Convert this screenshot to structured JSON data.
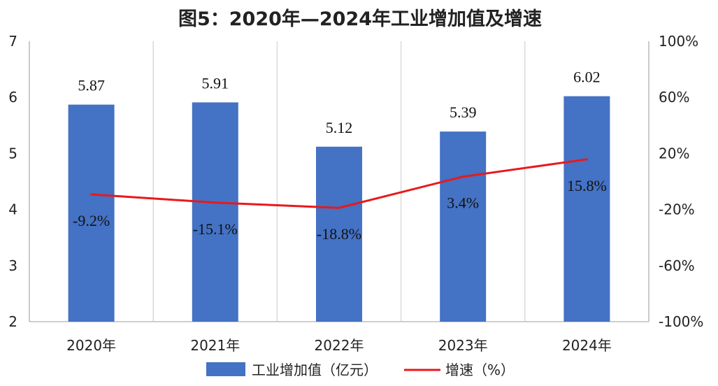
{
  "chart_data": {
    "type": "bar",
    "title": "图5：2020年—2024年工业增加值及增速",
    "categories": [
      "2020年",
      "2021年",
      "2022年",
      "2023年",
      "2024年"
    ],
    "series": [
      {
        "name": "工业增加值（亿元）",
        "kind": "bar",
        "axis": "left",
        "color": "#4472C4",
        "values": [
          5.87,
          5.91,
          5.12,
          5.39,
          6.02
        ],
        "labels": [
          "5.87",
          "5.91",
          "5.12",
          "5.39",
          "6.02"
        ]
      },
      {
        "name": "增速（%）",
        "kind": "line",
        "axis": "right",
        "color": "#E8191C",
        "values": [
          -9.2,
          -15.1,
          -18.8,
          3.4,
          15.8
        ],
        "labels": [
          "-9.2%",
          "-15.1%",
          "-18.8%",
          "3.4%",
          "15.8%"
        ]
      }
    ],
    "left_axis": {
      "ylim": [
        2,
        7
      ],
      "ticks": [
        "2",
        "3",
        "4",
        "5",
        "6",
        "7"
      ]
    },
    "right_axis": {
      "ylim": [
        -100,
        100
      ],
      "ticks": [
        "-100%",
        "-60%",
        "-20%",
        "20%",
        "60%",
        "100%"
      ]
    },
    "grid": "vertical",
    "legend_position": "bottom"
  }
}
